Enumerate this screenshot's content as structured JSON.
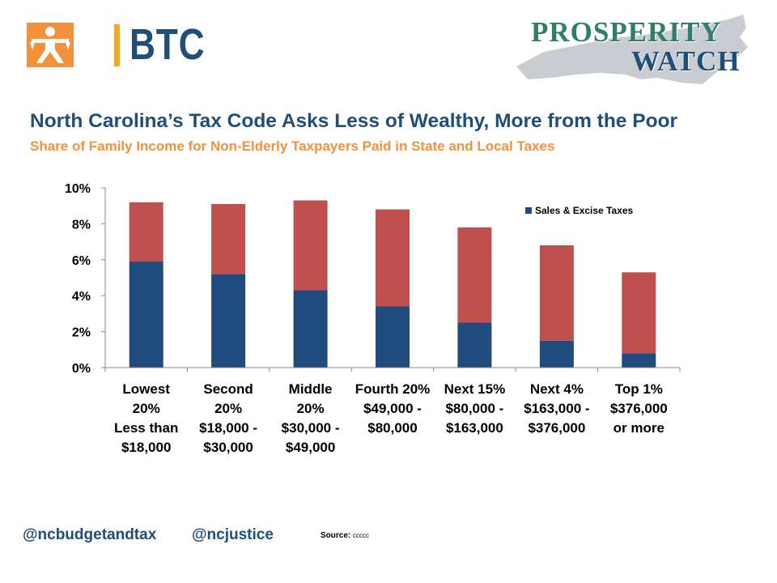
{
  "header": {
    "btc_logo_text": "BTC",
    "prosperity_watch_line1": "PROSPERITY",
    "prosperity_watch_line2": "WATCH"
  },
  "colors": {
    "navy": "#1f4b7e",
    "red": "#c0504d",
    "orange": "#f4913c",
    "teal": "#2f7d6b"
  },
  "chart_data": {
    "type": "bar",
    "stacked": true,
    "title": "North Carolina’s Tax Code Asks Less of Wealthy, More from the Poor",
    "subtitle": "Share of Family Income for Non-Elderly  Taxpayers Paid in State and Local Taxes",
    "categories": [
      [
        "Lowest",
        "20%",
        "Less than",
        "$18,000"
      ],
      [
        "Second",
        "20%",
        "$18,000 -",
        "$30,000"
      ],
      [
        "Middle",
        "20%",
        "$30,000 -",
        "$49,000"
      ],
      [
        "Fourth 20%",
        "$49,000 -",
        "$80,000"
      ],
      [
        "Next 15%",
        "$80,000 -",
        "$163,000"
      ],
      [
        "Next 4%",
        "$163,000 -",
        "$376,000"
      ],
      [
        "Top 1%",
        "$376,000",
        "or more"
      ]
    ],
    "series": [
      {
        "name": "Sales & Excise Taxes",
        "color": "#1f4b7e",
        "values": [
          5.9,
          5.2,
          4.3,
          3.4,
          2.5,
          1.5,
          0.8
        ]
      },
      {
        "color": "#c0504d",
        "values": [
          3.3,
          3.9,
          5.0,
          5.4,
          5.3,
          5.3,
          4.5
        ]
      }
    ],
    "ylim": [
      0,
      10
    ],
    "yticks": [
      "0%",
      "2%",
      "4%",
      "6%",
      "8%",
      "10%"
    ],
    "legend_position": "top-right",
    "grid": false
  },
  "footer": {
    "handle_1": "@ncbudgetandtax",
    "handle_2": "@ncjustice",
    "source_label": "Source:",
    "source_value": "ccccc"
  }
}
